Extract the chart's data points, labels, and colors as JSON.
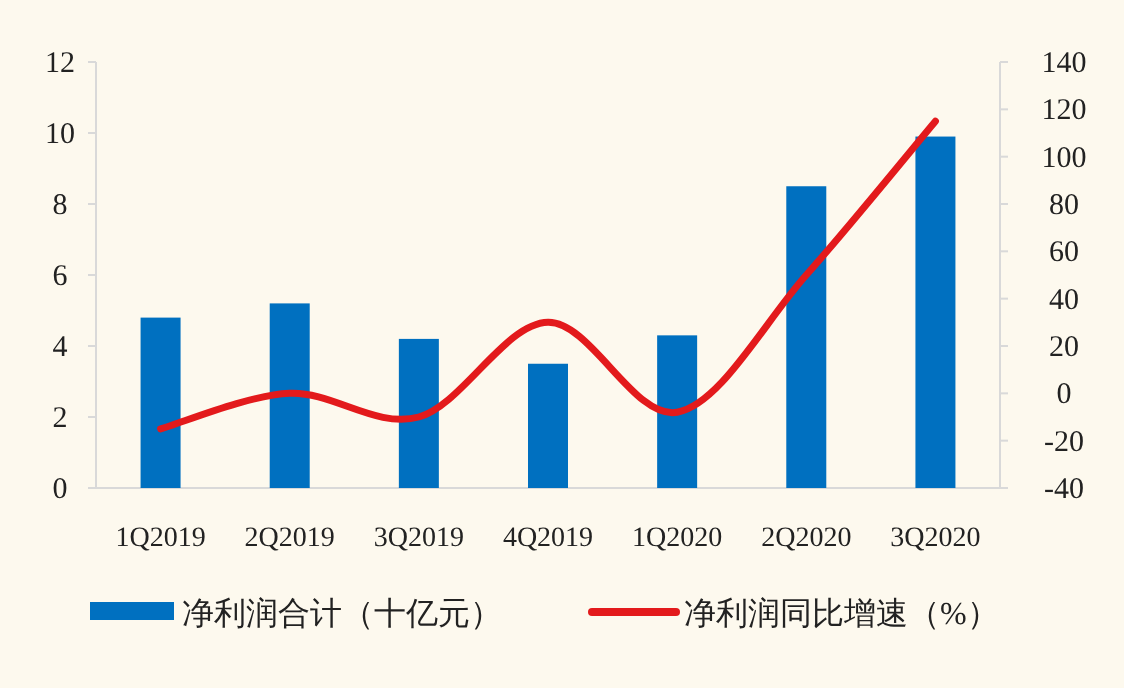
{
  "chart_data": {
    "type": "bar",
    "categories": [
      "1Q2019",
      "2Q2019",
      "3Q2019",
      "4Q2019",
      "1Q2020",
      "2Q2020",
      "3Q2020"
    ],
    "series": [
      {
        "name": "净利润合计（十亿元）",
        "color": "#0070c0",
        "values": [
          4.8,
          5.2,
          4.2,
          3.5,
          4.3,
          8.5,
          9.9
        ]
      },
      {
        "name": "净利润同比增速（%）",
        "type": "line",
        "axis": "y2",
        "color": "#e31a1c",
        "values": [
          -15,
          0,
          -10,
          30,
          -8,
          50,
          115
        ]
      }
    ],
    "ylim": [
      0,
      12
    ],
    "yticks": [
      0,
      2,
      4,
      6,
      8,
      10,
      12
    ],
    "y2lim": [
      -40,
      140
    ],
    "y2ticks": [
      -40,
      -20,
      0,
      20,
      40,
      60,
      80,
      100,
      120,
      140
    ],
    "legend": "bottom",
    "grid": false
  }
}
